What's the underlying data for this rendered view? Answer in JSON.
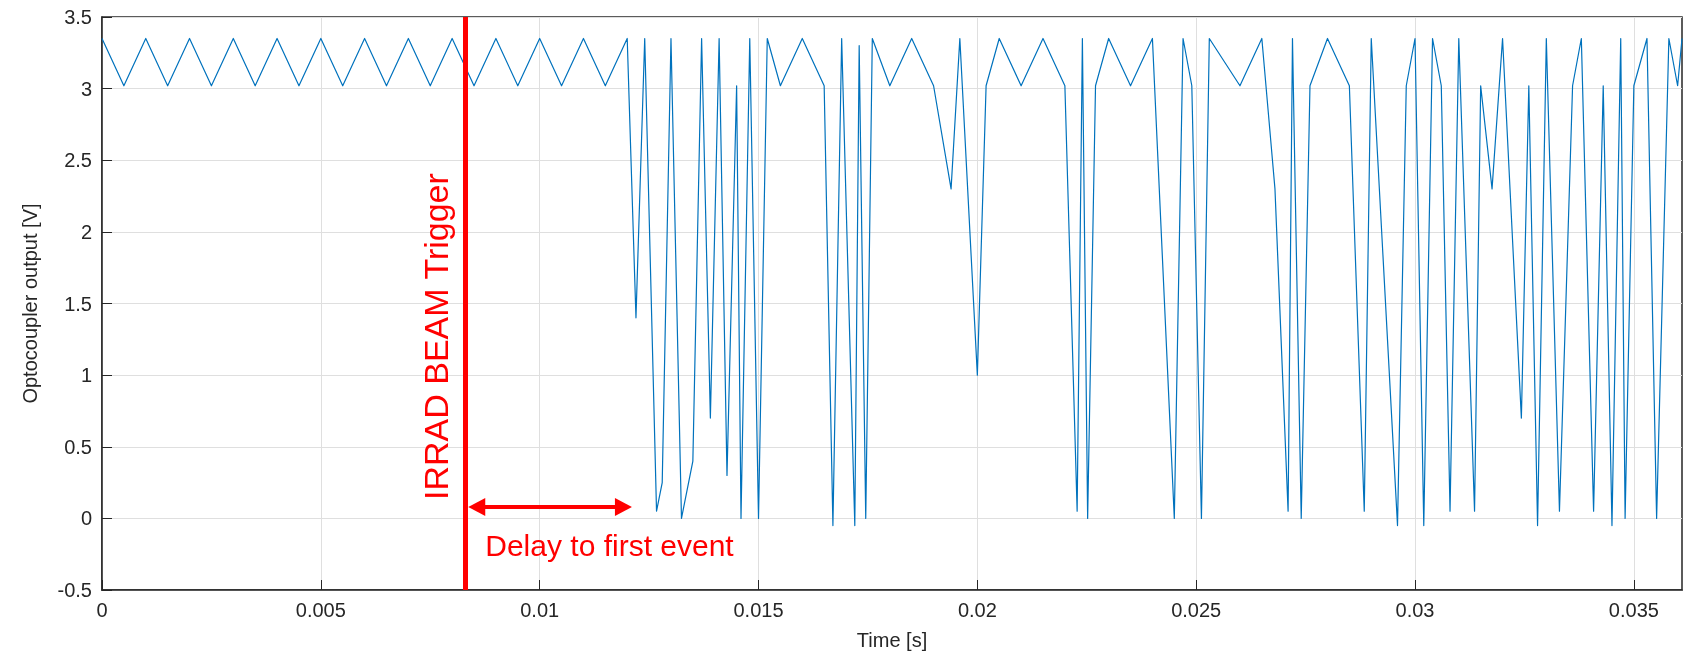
{
  "chart_data": {
    "type": "line",
    "xlabel": "Time [s]",
    "ylabel": "Optocoupler output [V]",
    "xlim": [
      0,
      0.0361
    ],
    "xticks": [
      0,
      0.005,
      0.01,
      0.015,
      0.02,
      0.025,
      0.03,
      0.035
    ],
    "ylim": [
      -0.5,
      3.5
    ],
    "yticks": [
      -0.5,
      0,
      0.5,
      1,
      1.5,
      2,
      2.5,
      3,
      3.5
    ],
    "grid": true,
    "line_style": "solid",
    "marker": "none",
    "series": [
      {
        "color": "#0072bd",
        "x": [
          0,
          0.0005,
          0.001,
          0.0015,
          0.002,
          0.0025,
          0.003,
          0.0035,
          0.004,
          0.0045,
          0.005,
          0.0055,
          0.006,
          0.0065,
          0.007,
          0.0075,
          0.008,
          0.0085,
          0.009,
          0.0095,
          0.01,
          0.0105,
          0.011,
          0.0115,
          0.012,
          0.0122,
          0.0124,
          0.01267,
          0.0128,
          0.013,
          0.01324,
          0.0135,
          0.0137,
          0.0139,
          0.0141,
          0.01428,
          0.0145,
          0.0146,
          0.0148,
          0.015,
          0.0152,
          0.0155,
          0.016,
          0.0165,
          0.0167,
          0.0169,
          0.0172,
          0.0173,
          0.01745,
          0.0176,
          0.018,
          0.0185,
          0.019,
          0.0194,
          0.0196,
          0.02,
          0.0202,
          0.0205,
          0.021,
          0.0215,
          0.022,
          0.02228,
          0.0224,
          0.02252,
          0.0227,
          0.023,
          0.0235,
          0.024,
          0.0245,
          0.0247,
          0.0249,
          0.02512,
          0.0253,
          0.026,
          0.0265,
          0.0268,
          0.0271,
          0.0272,
          0.0274,
          0.0276,
          0.028,
          0.0285,
          0.02884,
          0.029,
          0.0296,
          0.0298,
          0.03,
          0.0302,
          0.0304,
          0.0306,
          0.0308,
          0.031,
          0.03136,
          0.0315,
          0.03176,
          0.032,
          0.03243,
          0.0326,
          0.0328,
          0.033,
          0.0333,
          0.0336,
          0.0338,
          0.03408,
          0.0343,
          0.0345,
          0.0347,
          0.0348,
          0.035,
          0.0353,
          0.03552,
          0.0358,
          0.036,
          0.0361
        ],
        "values": [
          3.35,
          3.02,
          3.35,
          3.02,
          3.35,
          3.02,
          3.35,
          3.02,
          3.35,
          3.02,
          3.35,
          3.02,
          3.35,
          3.02,
          3.35,
          3.02,
          3.35,
          3.02,
          3.35,
          3.02,
          3.35,
          3.02,
          3.35,
          3.02,
          3.35,
          1.4,
          3.35,
          0.05,
          0.25,
          3.35,
          0,
          0.4,
          3.35,
          0.7,
          3.35,
          0.3,
          3.02,
          0,
          3.35,
          0,
          3.35,
          3.02,
          3.35,
          3.02,
          -0.05,
          3.35,
          -0.05,
          3.3,
          0,
          3.35,
          3.02,
          3.35,
          3.02,
          2.3,
          3.35,
          1.0,
          3.02,
          3.35,
          3.02,
          3.35,
          3.02,
          0.05,
          3.35,
          0,
          3.02,
          3.35,
          3.02,
          3.35,
          0,
          3.35,
          3.02,
          0,
          3.35,
          3.02,
          3.35,
          2.3,
          0.05,
          3.35,
          0,
          3.02,
          3.35,
          3.02,
          0.05,
          3.35,
          -0.05,
          3.02,
          3.35,
          -0.05,
          3.35,
          3.02,
          0.05,
          3.35,
          0.05,
          3.02,
          2.3,
          3.35,
          0.7,
          3.02,
          -0.05,
          3.35,
          0.05,
          3.02,
          3.35,
          0.05,
          3.02,
          -0.05,
          3.35,
          0,
          3.02,
          3.35,
          0,
          3.35,
          3.02,
          3.35
        ]
      }
    ],
    "ref_lines": [
      {
        "axis": "x",
        "value": 0.0083,
        "label": "IRRAD BEAM Trigger",
        "color": "#ff0000",
        "line_style": "solid"
      }
    ],
    "annotations": [
      "Delay to first event"
    ]
  }
}
